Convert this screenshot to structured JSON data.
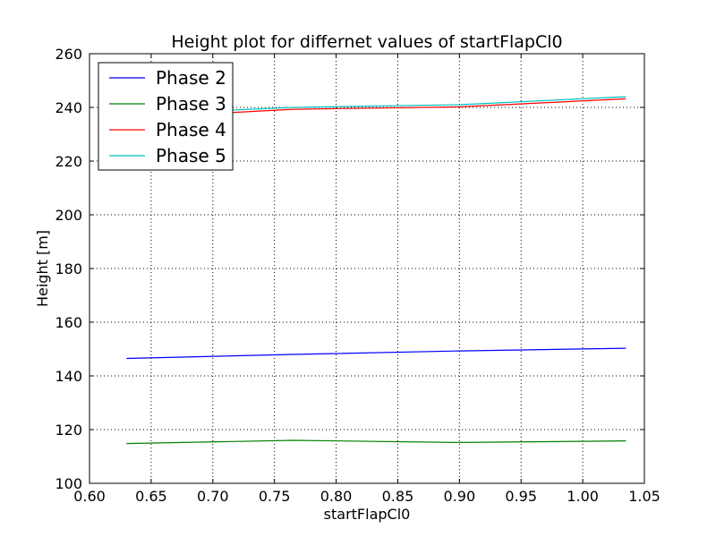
{
  "chart_data": {
    "type": "line",
    "title": "Height plot for differnet values of startFlapCl0",
    "xlabel": "startFlapCl0",
    "ylabel": "Height [m]",
    "xlim": [
      0.6,
      1.05
    ],
    "ylim": [
      100,
      260
    ],
    "xticks": [
      "0.60",
      "0.65",
      "0.70",
      "0.75",
      "0.80",
      "0.85",
      "0.90",
      "0.95",
      "1.00",
      "1.05"
    ],
    "yticks": [
      "100",
      "120",
      "140",
      "160",
      "180",
      "200",
      "220",
      "240",
      "260"
    ],
    "grid": true,
    "legend_position": "top-left",
    "x": [
      0.63,
      0.765,
      0.9,
      1.035
    ],
    "series": [
      {
        "name": "Phase 2",
        "color": "#0000ff",
        "values": [
          146.5,
          148.0,
          149.3,
          150.3
        ]
      },
      {
        "name": "Phase 3",
        "color": "#008000",
        "values": [
          114.8,
          116.0,
          115.2,
          115.8
        ]
      },
      {
        "name": "Phase 4",
        "color": "#ff0000",
        "values": [
          236.0,
          239.3,
          240.2,
          243.2
        ]
      },
      {
        "name": "Phase 5",
        "color": "#00bfbf",
        "values": [
          237.3,
          240.0,
          241.0,
          244.0
        ]
      }
    ]
  }
}
